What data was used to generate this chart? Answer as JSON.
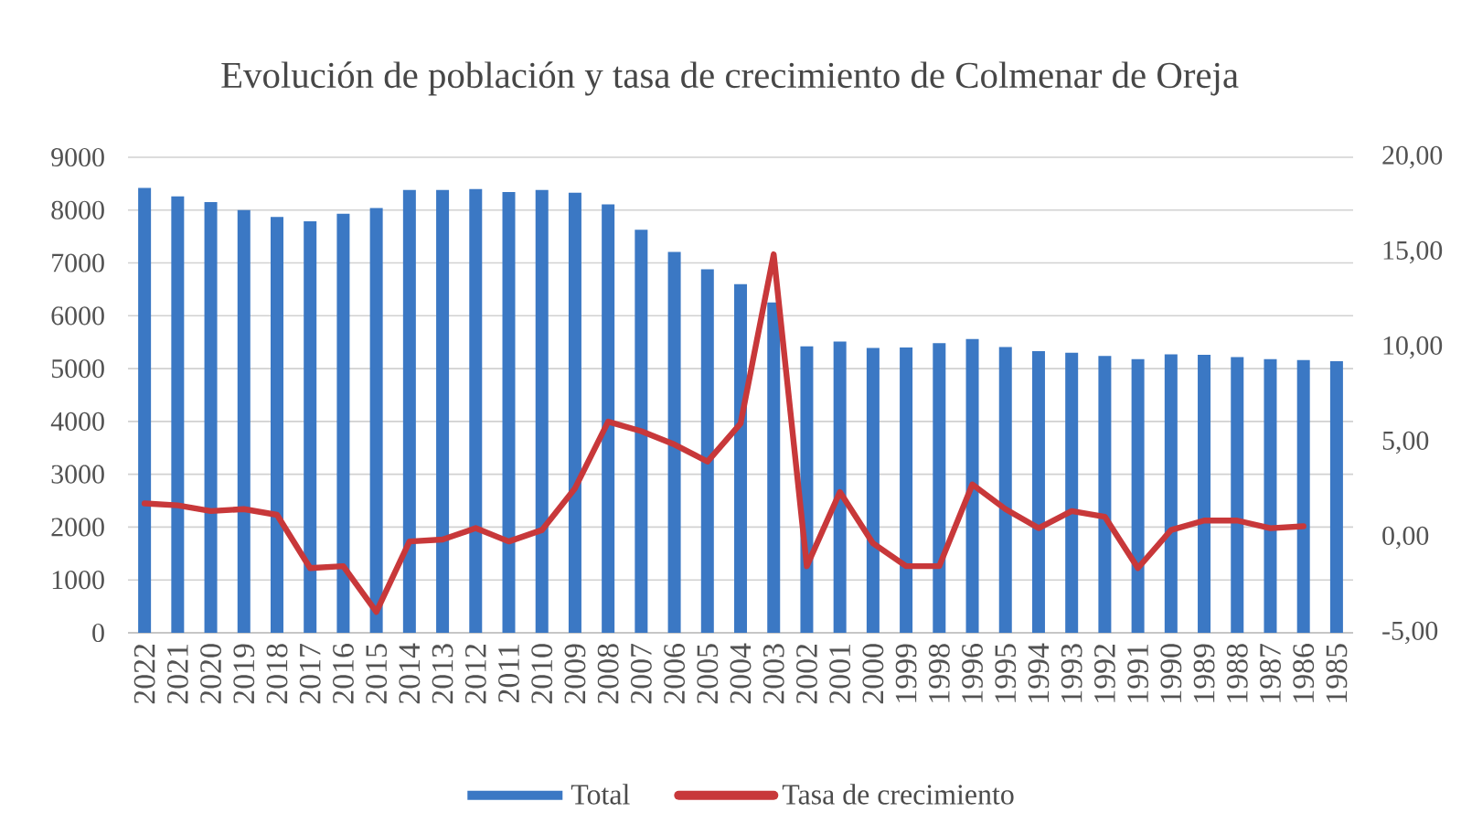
{
  "chart_data": {
    "type": "bar",
    "title": "Evolución de población y tasa de crecimiento de Colmenar de Oreja",
    "categories": [
      "2022",
      "2021",
      "2020",
      "2019",
      "2018",
      "2017",
      "2016",
      "2015",
      "2014",
      "2013",
      "2012",
      "2011",
      "2010",
      "2009",
      "2008",
      "2007",
      "2006",
      "2005",
      "2004",
      "2003",
      "2002",
      "2001",
      "2000",
      "1999",
      "1998",
      "1996",
      "1995",
      "1994",
      "1993",
      "1992",
      "1991",
      "1990",
      "1989",
      "1988",
      "1987",
      "1986",
      "1985"
    ],
    "series": [
      {
        "name": "Total",
        "color": "#3b78c4",
        "values": [
          8420,
          8260,
          8150,
          8000,
          7870,
          7790,
          7930,
          8040,
          8380,
          8380,
          8400,
          8340,
          8380,
          8330,
          8110,
          7630,
          7210,
          6880,
          6600,
          6250,
          5420,
          5510,
          5390,
          5400,
          5480,
          5560,
          5410,
          5330,
          5300,
          5240,
          5180,
          5270,
          5260,
          5220,
          5180,
          5160,
          5140
        ]
      },
      {
        "name": "Tasa de crecimiento",
        "type": "line",
        "axis": "y2",
        "color": "#c8383a",
        "values": [
          1.8,
          1.7,
          1.4,
          1.5,
          1.2,
          -1.6,
          -1.5,
          -3.9,
          -0.2,
          -0.1,
          0.5,
          -0.2,
          0.4,
          2.6,
          6.1,
          5.6,
          4.9,
          4.0,
          6.0,
          14.9,
          -1.5,
          2.4,
          -0.3,
          -1.5,
          -1.5,
          2.8,
          1.5,
          0.5,
          1.4,
          1.1,
          -1.6,
          0.4,
          0.9,
          0.9,
          0.5,
          0.6,
          null
        ]
      }
    ],
    "ylim": [
      0,
      9000
    ],
    "yticks": [
      0,
      1000,
      2000,
      3000,
      4000,
      5000,
      6000,
      7000,
      8000,
      9000
    ],
    "y2lim": [
      -5,
      20
    ],
    "y2ticks": [
      {
        "value": -5,
        "label": "-5,00"
      },
      {
        "value": 0,
        "label": "0,00"
      },
      {
        "value": 5,
        "label": "5,00"
      },
      {
        "value": 10,
        "label": "10,00"
      },
      {
        "value": 15,
        "label": "15,00"
      },
      {
        "value": 20,
        "label": "20,00"
      }
    ],
    "grid": "y",
    "legend": "bottom"
  }
}
